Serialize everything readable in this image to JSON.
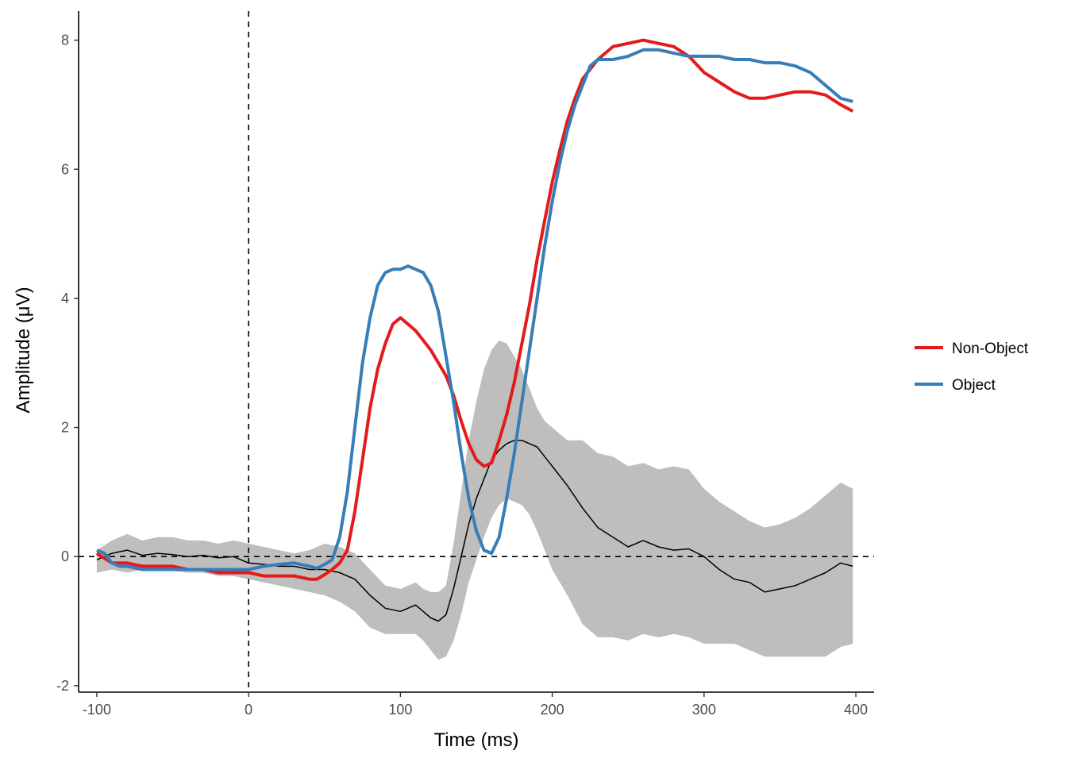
{
  "chart_data": {
    "type": "line",
    "title": "",
    "xlabel": "Time (ms)",
    "ylabel": "Amplitude (μV)",
    "xlim": [
      -112,
      412
    ],
    "ylim": [
      -2.1,
      8.45
    ],
    "xticks": [
      -100,
      0,
      100,
      200,
      300,
      400
    ],
    "xtick_labels": [
      "-100",
      "0",
      "100",
      "200",
      "300",
      "400"
    ],
    "yticks": [
      -2,
      0,
      2,
      4,
      6,
      8
    ],
    "ytick_labels": [
      "-2",
      "0",
      "2",
      "4",
      "6",
      "8"
    ],
    "grid": false,
    "legend_position": "right",
    "reference_lines": [
      {
        "orientation": "horizontal",
        "value": 0,
        "style": "dashed"
      },
      {
        "orientation": "vertical",
        "value": 0,
        "style": "dashed"
      }
    ],
    "series": [
      {
        "name": "Non-Object",
        "color": "#e41a1c",
        "x": [
          -100,
          -90,
          -80,
          -70,
          -60,
          -50,
          -40,
          -30,
          -20,
          -10,
          0,
          10,
          20,
          30,
          40,
          45,
          50,
          55,
          60,
          65,
          70,
          75,
          80,
          85,
          90,
          95,
          100,
          105,
          110,
          115,
          120,
          125,
          130,
          135,
          140,
          145,
          150,
          155,
          160,
          165,
          170,
          175,
          180,
          185,
          190,
          195,
          200,
          205,
          210,
          215,
          220,
          225,
          230,
          235,
          240,
          250,
          260,
          270,
          280,
          290,
          300,
          310,
          320,
          330,
          340,
          350,
          360,
          370,
          380,
          390,
          398
        ],
        "values": [
          0.05,
          -0.1,
          -0.1,
          -0.15,
          -0.15,
          -0.15,
          -0.2,
          -0.2,
          -0.25,
          -0.25,
          -0.25,
          -0.3,
          -0.3,
          -0.3,
          -0.35,
          -0.35,
          -0.28,
          -0.2,
          -0.1,
          0.1,
          0.7,
          1.5,
          2.3,
          2.9,
          3.3,
          3.6,
          3.7,
          3.6,
          3.5,
          3.35,
          3.2,
          3.0,
          2.8,
          2.5,
          2.1,
          1.75,
          1.5,
          1.4,
          1.45,
          1.8,
          2.2,
          2.7,
          3.3,
          3.9,
          4.6,
          5.2,
          5.8,
          6.3,
          6.75,
          7.1,
          7.4,
          7.55,
          7.7,
          7.8,
          7.9,
          7.95,
          8.0,
          7.95,
          7.9,
          7.75,
          7.5,
          7.35,
          7.2,
          7.1,
          7.1,
          7.15,
          7.2,
          7.2,
          7.15,
          7.0,
          6.9
        ]
      },
      {
        "name": "Object",
        "color": "#377eb8",
        "x": [
          -100,
          -95,
          -90,
          -85,
          -80,
          -70,
          -60,
          -50,
          -40,
          -30,
          -20,
          -10,
          0,
          10,
          20,
          30,
          40,
          45,
          50,
          55,
          60,
          65,
          70,
          75,
          80,
          85,
          90,
          95,
          100,
          105,
          110,
          115,
          120,
          125,
          130,
          135,
          140,
          145,
          150,
          155,
          160,
          165,
          170,
          175,
          180,
          185,
          190,
          195,
          200,
          205,
          210,
          215,
          220,
          225,
          230,
          240,
          250,
          260,
          270,
          280,
          290,
          300,
          310,
          320,
          330,
          340,
          350,
          360,
          370,
          380,
          390,
          398
        ],
        "values": [
          0.1,
          0.05,
          -0.1,
          -0.15,
          -0.15,
          -0.2,
          -0.2,
          -0.2,
          -0.2,
          -0.2,
          -0.2,
          -0.2,
          -0.2,
          -0.15,
          -0.12,
          -0.1,
          -0.15,
          -0.18,
          -0.12,
          -0.05,
          0.3,
          1.0,
          2.0,
          3.0,
          3.7,
          4.2,
          4.4,
          4.45,
          4.45,
          4.5,
          4.45,
          4.4,
          4.2,
          3.8,
          3.1,
          2.4,
          1.6,
          0.9,
          0.4,
          0.1,
          0.05,
          0.3,
          0.9,
          1.6,
          2.4,
          3.2,
          4.0,
          4.8,
          5.5,
          6.1,
          6.6,
          7.0,
          7.3,
          7.6,
          7.7,
          7.7,
          7.75,
          7.85,
          7.85,
          7.8,
          7.75,
          7.75,
          7.75,
          7.7,
          7.7,
          7.65,
          7.65,
          7.6,
          7.5,
          7.3,
          7.1,
          7.05
        ]
      },
      {
        "name": "",
        "color": "#000000",
        "x": [
          -100,
          -90,
          -80,
          -70,
          -60,
          -50,
          -40,
          -30,
          -20,
          -10,
          0,
          10,
          20,
          30,
          40,
          50,
          60,
          70,
          80,
          90,
          100,
          110,
          115,
          120,
          125,
          130,
          135,
          140,
          145,
          150,
          155,
          160,
          165,
          170,
          175,
          180,
          185,
          190,
          195,
          200,
          210,
          220,
          230,
          240,
          250,
          260,
          270,
          280,
          290,
          300,
          310,
          320,
          330,
          340,
          350,
          360,
          370,
          380,
          390,
          398
        ],
        "values": [
          -0.05,
          0.05,
          0.1,
          0.02,
          0.05,
          0.03,
          0.0,
          0.02,
          -0.02,
          0.0,
          -0.1,
          -0.12,
          -0.15,
          -0.15,
          -0.2,
          -0.2,
          -0.25,
          -0.35,
          -0.6,
          -0.8,
          -0.85,
          -0.75,
          -0.85,
          -0.95,
          -1.0,
          -0.9,
          -0.5,
          0.0,
          0.5,
          0.9,
          1.2,
          1.5,
          1.65,
          1.75,
          1.8,
          1.8,
          1.75,
          1.7,
          1.55,
          1.4,
          1.1,
          0.75,
          0.45,
          0.3,
          0.15,
          0.25,
          0.15,
          0.1,
          0.12,
          0.0,
          -0.2,
          -0.35,
          -0.4,
          -0.55,
          -0.5,
          -0.45,
          -0.35,
          -0.25,
          -0.1,
          -0.15
        ]
      }
    ],
    "ribbon": {
      "color": "#bebebe",
      "x": [
        -100,
        -90,
        -80,
        -70,
        -60,
        -50,
        -40,
        -30,
        -20,
        -10,
        0,
        10,
        20,
        30,
        40,
        50,
        60,
        70,
        80,
        90,
        100,
        110,
        115,
        120,
        125,
        130,
        135,
        140,
        145,
        150,
        155,
        160,
        165,
        170,
        175,
        180,
        185,
        190,
        195,
        200,
        210,
        220,
        230,
        240,
        250,
        260,
        270,
        280,
        290,
        300,
        310,
        320,
        330,
        340,
        350,
        360,
        370,
        380,
        390,
        398
      ],
      "lower": [
        -0.25,
        -0.2,
        -0.25,
        -0.2,
        -0.2,
        -0.22,
        -0.25,
        -0.25,
        -0.3,
        -0.3,
        -0.35,
        -0.4,
        -0.45,
        -0.5,
        -0.55,
        -0.6,
        -0.7,
        -0.85,
        -1.1,
        -1.2,
        -1.2,
        -1.2,
        -1.3,
        -1.45,
        -1.6,
        -1.55,
        -1.3,
        -0.9,
        -0.4,
        -0.05,
        0.3,
        0.6,
        0.8,
        0.9,
        0.85,
        0.8,
        0.65,
        0.4,
        0.1,
        -0.2,
        -0.6,
        -1.05,
        -1.25,
        -1.25,
        -1.3,
        -1.2,
        -1.25,
        -1.2,
        -1.25,
        -1.35,
        -1.35,
        -1.35,
        -1.45,
        -1.55,
        -1.55,
        -1.55,
        -1.55,
        -1.55,
        -1.4,
        -1.35
      ],
      "upper": [
        0.1,
        0.25,
        0.35,
        0.25,
        0.3,
        0.3,
        0.25,
        0.25,
        0.2,
        0.25,
        0.2,
        0.15,
        0.1,
        0.05,
        0.1,
        0.2,
        0.15,
        0.05,
        -0.2,
        -0.45,
        -0.5,
        -0.4,
        -0.5,
        -0.55,
        -0.55,
        -0.45,
        0.2,
        1.0,
        1.8,
        2.4,
        2.9,
        3.2,
        3.35,
        3.3,
        3.1,
        2.9,
        2.6,
        2.3,
        2.1,
        2.0,
        1.8,
        1.8,
        1.6,
        1.55,
        1.4,
        1.45,
        1.35,
        1.4,
        1.35,
        1.05,
        0.85,
        0.7,
        0.55,
        0.45,
        0.5,
        0.6,
        0.75,
        0.95,
        1.15,
        1.05
      ]
    },
    "legend": {
      "entries": [
        {
          "label": "Non-Object",
          "color": "#e41a1c"
        },
        {
          "label": "Object",
          "color": "#377eb8"
        }
      ]
    }
  }
}
